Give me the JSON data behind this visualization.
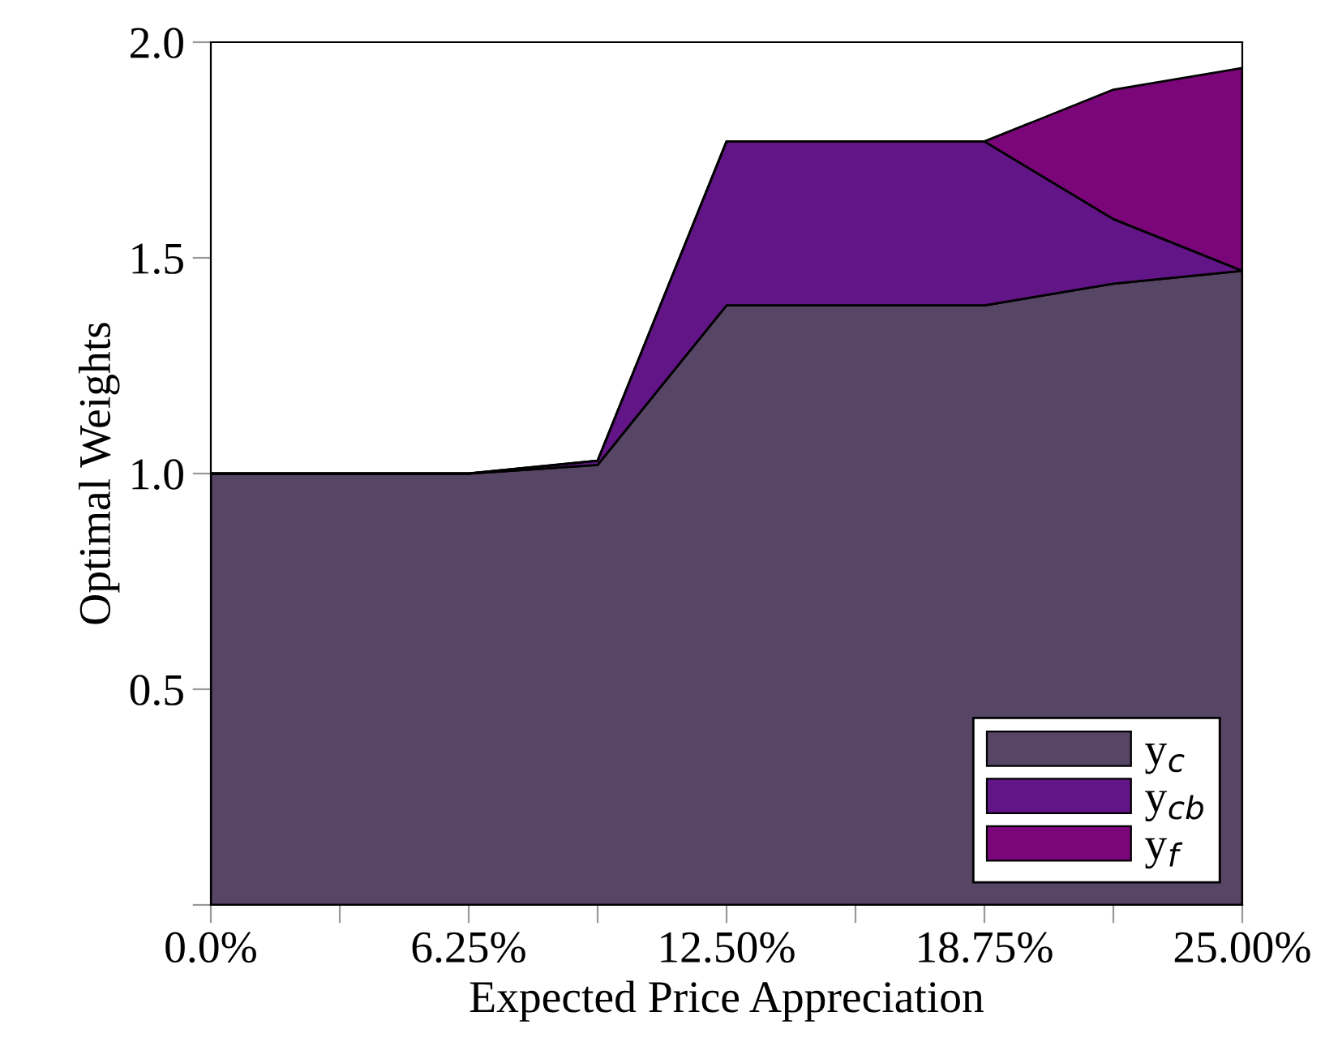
{
  "chart_data": {
    "type": "area",
    "stacked": true,
    "xlabel": "Expected Price Appreciation",
    "ylabel": "Optimal Weights",
    "x": [
      0,
      6.25,
      9.375,
      12.5,
      18.75,
      21.875,
      25
    ],
    "series": [
      {
        "name": "y$_{c}$",
        "color": "#574566",
        "values": [
          1.0,
          1.0,
          1.02,
          1.39,
          1.39,
          1.44,
          1.47
        ]
      },
      {
        "name": "y$_{cb}$",
        "color": "#611587",
        "values": [
          0,
          0,
          0.01,
          0.38,
          0.38,
          0.15,
          0
        ]
      },
      {
        "name": "y$_{f}$",
        "color": "#7a067a",
        "values": [
          0,
          0,
          0,
          0,
          0,
          0.3,
          0.47
        ]
      }
    ],
    "xlim": [
      0,
      25
    ],
    "xticks": [
      {
        "value": 0,
        "label": "0.0%"
      },
      {
        "value": 3.125,
        "label": null
      },
      {
        "value": 6.25,
        "label": "6.25%"
      },
      {
        "value": 9.375,
        "label": null
      },
      {
        "value": 12.5,
        "label": "12.50%"
      },
      {
        "value": 15.625,
        "label": null
      },
      {
        "value": 18.75,
        "label": "18.75%"
      },
      {
        "value": 21.875,
        "label": null
      },
      {
        "value": 25,
        "label": "25.00%"
      }
    ],
    "ylim": [
      0,
      2
    ],
    "yticks": [
      {
        "value": 0,
        "label": null
      },
      {
        "value": 0.5,
        "label": "0.5"
      },
      {
        "value": 1.0,
        "label": "1.0"
      },
      {
        "value": 1.5,
        "label": "1.5"
      },
      {
        "value": 2.0,
        "label": "2.0"
      }
    ],
    "grid": false,
    "legend": "bottom right"
  }
}
